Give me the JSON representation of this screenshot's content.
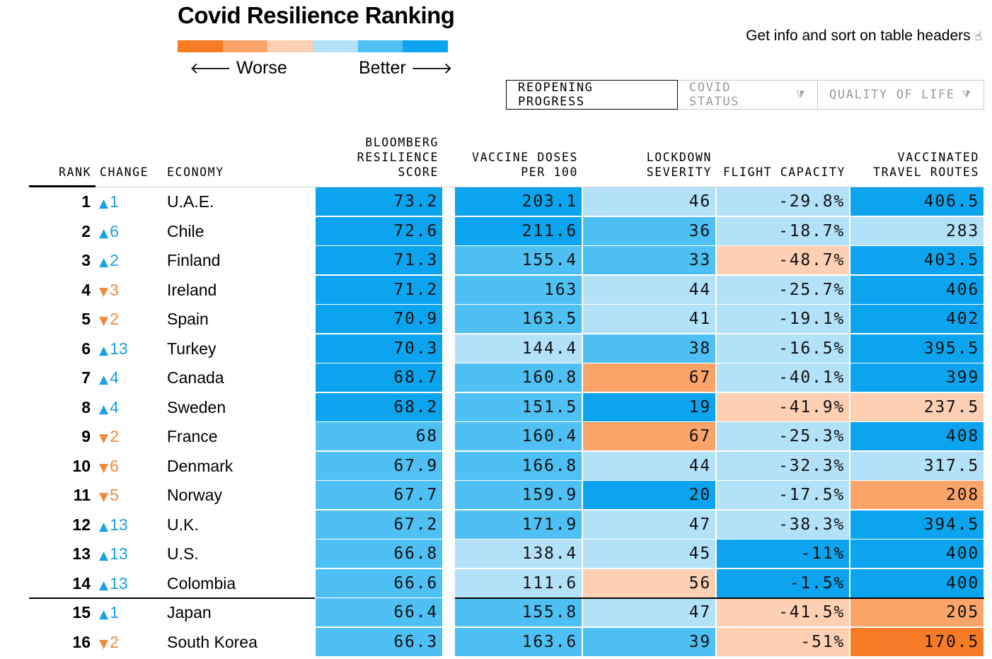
{
  "title": "Covid Resilience Ranking",
  "legend": {
    "worse_label": "Worse",
    "better_label": "Better",
    "worse_arrow": "🡐",
    "better_arrow": "🡒",
    "colors": [
      "#f77b24",
      "#fba46a",
      "#fdd0b3",
      "#b3e1f8",
      "#4fc0f3",
      "#0ca4ef"
    ]
  },
  "hint": {
    "text": "Get info and sort on table headers",
    "icon": "hand-pointer-icon",
    "glyph": "☝"
  },
  "tabs": [
    {
      "label": "REOPENING PROGRESS",
      "active": true,
      "filter_glyph": ""
    },
    {
      "label": "COVID STATUS",
      "active": false,
      "filter_glyph": "⧩"
    },
    {
      "label": "QUALITY OF LIFE",
      "active": false,
      "filter_glyph": "⧩"
    }
  ],
  "columns": {
    "rank": "RANK",
    "change": "CHANGE",
    "economy": "ECONOMY",
    "score": "BLOOMBERG\nRESILIENCE\nSCORE",
    "vaccine": "VACCINE DOSES\nPER 100",
    "lockdown": "LOCKDOWN\nSEVERITY",
    "flight": "FLIGHT CAPACITY",
    "routes": "VACCINATED\nTRAVEL ROUTES"
  },
  "change_glyphs": {
    "up": "▲",
    "down": "▼"
  },
  "colors": {
    "up": "#1ba0e2",
    "down": "#f28a3a",
    "shades": {
      "best": "#0ca4ef",
      "good": "#4fc0f3",
      "fair": "#b3e1f8",
      "poor": "#fdd0b3",
      "bad": "#fba46a",
      "worst": "#f77b24"
    }
  },
  "rows": [
    {
      "rank": "1",
      "dir": "up",
      "change": "1",
      "economy": "U.A.E.",
      "score": "73.2",
      "vaccine": "203.1",
      "lockdown": "46",
      "flight": "-29.8%",
      "routes": "406.5",
      "shade": [
        "best",
        "best",
        "fair",
        "fair",
        "best"
      ]
    },
    {
      "rank": "2",
      "dir": "up",
      "change": "6",
      "economy": "Chile",
      "score": "72.6",
      "vaccine": "211.6",
      "lockdown": "36",
      "flight": "-18.7%",
      "routes": "283",
      "shade": [
        "best",
        "best",
        "good",
        "fair",
        "fair"
      ]
    },
    {
      "rank": "3",
      "dir": "up",
      "change": "2",
      "economy": "Finland",
      "score": "71.3",
      "vaccine": "155.4",
      "lockdown": "33",
      "flight": "-48.7%",
      "routes": "403.5",
      "shade": [
        "best",
        "good",
        "good",
        "poor",
        "best"
      ]
    },
    {
      "rank": "4",
      "dir": "down",
      "change": "3",
      "economy": "Ireland",
      "score": "71.2",
      "vaccine": "163",
      "lockdown": "44",
      "flight": "-25.7%",
      "routes": "406",
      "shade": [
        "best",
        "good",
        "fair",
        "fair",
        "best"
      ]
    },
    {
      "rank": "5",
      "dir": "down",
      "change": "2",
      "economy": "Spain",
      "score": "70.9",
      "vaccine": "163.5",
      "lockdown": "41",
      "flight": "-19.1%",
      "routes": "402",
      "shade": [
        "best",
        "good",
        "fair",
        "fair",
        "best"
      ]
    },
    {
      "rank": "6",
      "dir": "up",
      "change": "13",
      "economy": "Turkey",
      "score": "70.3",
      "vaccine": "144.4",
      "lockdown": "38",
      "flight": "-16.5%",
      "routes": "395.5",
      "shade": [
        "best",
        "fair",
        "good",
        "fair",
        "best"
      ]
    },
    {
      "rank": "7",
      "dir": "up",
      "change": "4",
      "economy": "Canada",
      "score": "68.7",
      "vaccine": "160.8",
      "lockdown": "67",
      "flight": "-40.1%",
      "routes": "399",
      "shade": [
        "best",
        "good",
        "bad",
        "fair",
        "best"
      ]
    },
    {
      "rank": "8",
      "dir": "up",
      "change": "4",
      "economy": "Sweden",
      "score": "68.2",
      "vaccine": "151.5",
      "lockdown": "19",
      "flight": "-41.9%",
      "routes": "237.5",
      "shade": [
        "best",
        "good",
        "best",
        "poor",
        "poor"
      ]
    },
    {
      "rank": "9",
      "dir": "down",
      "change": "2",
      "economy": "France",
      "score": "68",
      "vaccine": "160.4",
      "lockdown": "67",
      "flight": "-25.3%",
      "routes": "408",
      "shade": [
        "good",
        "good",
        "bad",
        "fair",
        "best"
      ]
    },
    {
      "rank": "10",
      "dir": "down",
      "change": "6",
      "economy": "Denmark",
      "score": "67.9",
      "vaccine": "166.8",
      "lockdown": "44",
      "flight": "-32.3%",
      "routes": "317.5",
      "shade": [
        "good",
        "good",
        "fair",
        "fair",
        "fair"
      ]
    },
    {
      "rank": "11",
      "dir": "down",
      "change": "5",
      "economy": "Norway",
      "score": "67.7",
      "vaccine": "159.9",
      "lockdown": "20",
      "flight": "-17.5%",
      "routes": "208",
      "shade": [
        "good",
        "good",
        "best",
        "fair",
        "bad"
      ]
    },
    {
      "rank": "12",
      "dir": "up",
      "change": "13",
      "economy": "U.K.",
      "score": "67.2",
      "vaccine": "171.9",
      "lockdown": "47",
      "flight": "-38.3%",
      "routes": "394.5",
      "shade": [
        "good",
        "good",
        "fair",
        "fair",
        "best"
      ]
    },
    {
      "rank": "13",
      "dir": "up",
      "change": "13",
      "economy": "U.S.",
      "score": "66.8",
      "vaccine": "138.4",
      "lockdown": "45",
      "flight": "-11%",
      "routes": "400",
      "shade": [
        "good",
        "fair",
        "fair",
        "best",
        "best"
      ]
    },
    {
      "rank": "14",
      "dir": "up",
      "change": "13",
      "economy": "Colombia",
      "score": "66.6",
      "vaccine": "111.6",
      "lockdown": "56",
      "flight": "-1.5%",
      "routes": "400",
      "shade": [
        "good",
        "fair",
        "poor",
        "best",
        "best"
      ]
    },
    {
      "rank": "15",
      "dir": "up",
      "change": "1",
      "economy": "Japan",
      "score": "66.4",
      "vaccine": "155.8",
      "lockdown": "47",
      "flight": "-41.5%",
      "routes": "205",
      "shade": [
        "good",
        "good",
        "fair",
        "poor",
        "bad"
      ]
    },
    {
      "rank": "16",
      "dir": "down",
      "change": "2",
      "economy": "South Korea",
      "score": "66.3",
      "vaccine": "163.6",
      "lockdown": "39",
      "flight": "-51%",
      "routes": "170.5",
      "shade": [
        "good",
        "good",
        "good",
        "poor",
        "worst"
      ]
    }
  ]
}
